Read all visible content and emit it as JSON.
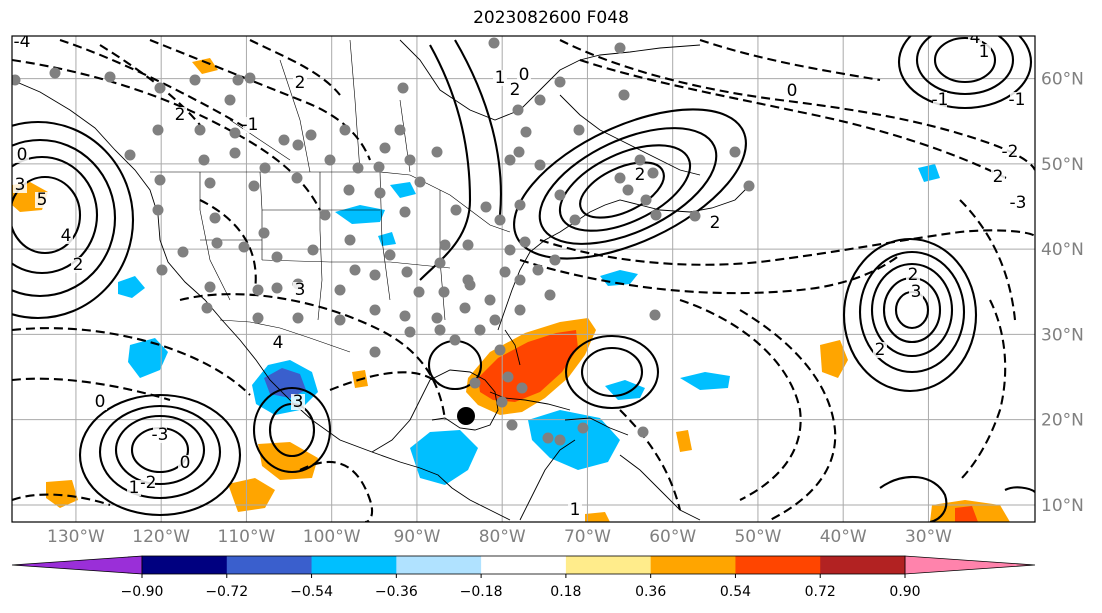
{
  "title": "2023082600 F048",
  "map": {
    "lon_labels": [
      "130°W",
      "120°W",
      "110°W",
      "100°W",
      "90°W",
      "80°W",
      "70°W",
      "60°W",
      "50°W",
      "40°W",
      "30°W"
    ],
    "lat_labels": [
      "60°N",
      "50°N",
      "40°N",
      "30°N",
      "20°N",
      "10°N"
    ],
    "extent": {
      "lon_min": -137.5,
      "lon_max": -17.5,
      "lat_min": 8,
      "lat_max": 65
    },
    "grid": true,
    "gridline_color": "#aaaaaa",
    "land_outline_color": "#000000",
    "station_color": "#808080",
    "marker": {
      "lon": -87,
      "lat": 20.5,
      "color": "#000000"
    }
  },
  "contour_labels": [
    "-4",
    "5",
    "4",
    "2",
    "0",
    "3",
    "2",
    "-1",
    "2",
    "0",
    "-2",
    "-3",
    "0",
    "3",
    "4",
    "3",
    "2",
    "1",
    "0",
    "2",
    "2",
    "0",
    "2",
    "-1",
    "-2",
    "-3",
    "2",
    "2",
    "3",
    "4",
    "1",
    "-1",
    "1",
    "1"
  ],
  "colorbar": {
    "ticks": [
      "−0.90",
      "−0.72",
      "−0.54",
      "−0.36",
      "−0.18",
      "0.18",
      "0.36",
      "0.54",
      "0.72",
      "0.90"
    ],
    "colors": [
      "#9a2fd8",
      "#000080",
      "#3a5fcd",
      "#00bfff",
      "#b0e2ff",
      "#ffffff",
      "#ffec8b",
      "#ffa500",
      "#ff4500",
      "#b22222",
      "#ff83ac"
    ],
    "over_color": "#ff83ac",
    "under_color": "#9a2fd8"
  }
}
